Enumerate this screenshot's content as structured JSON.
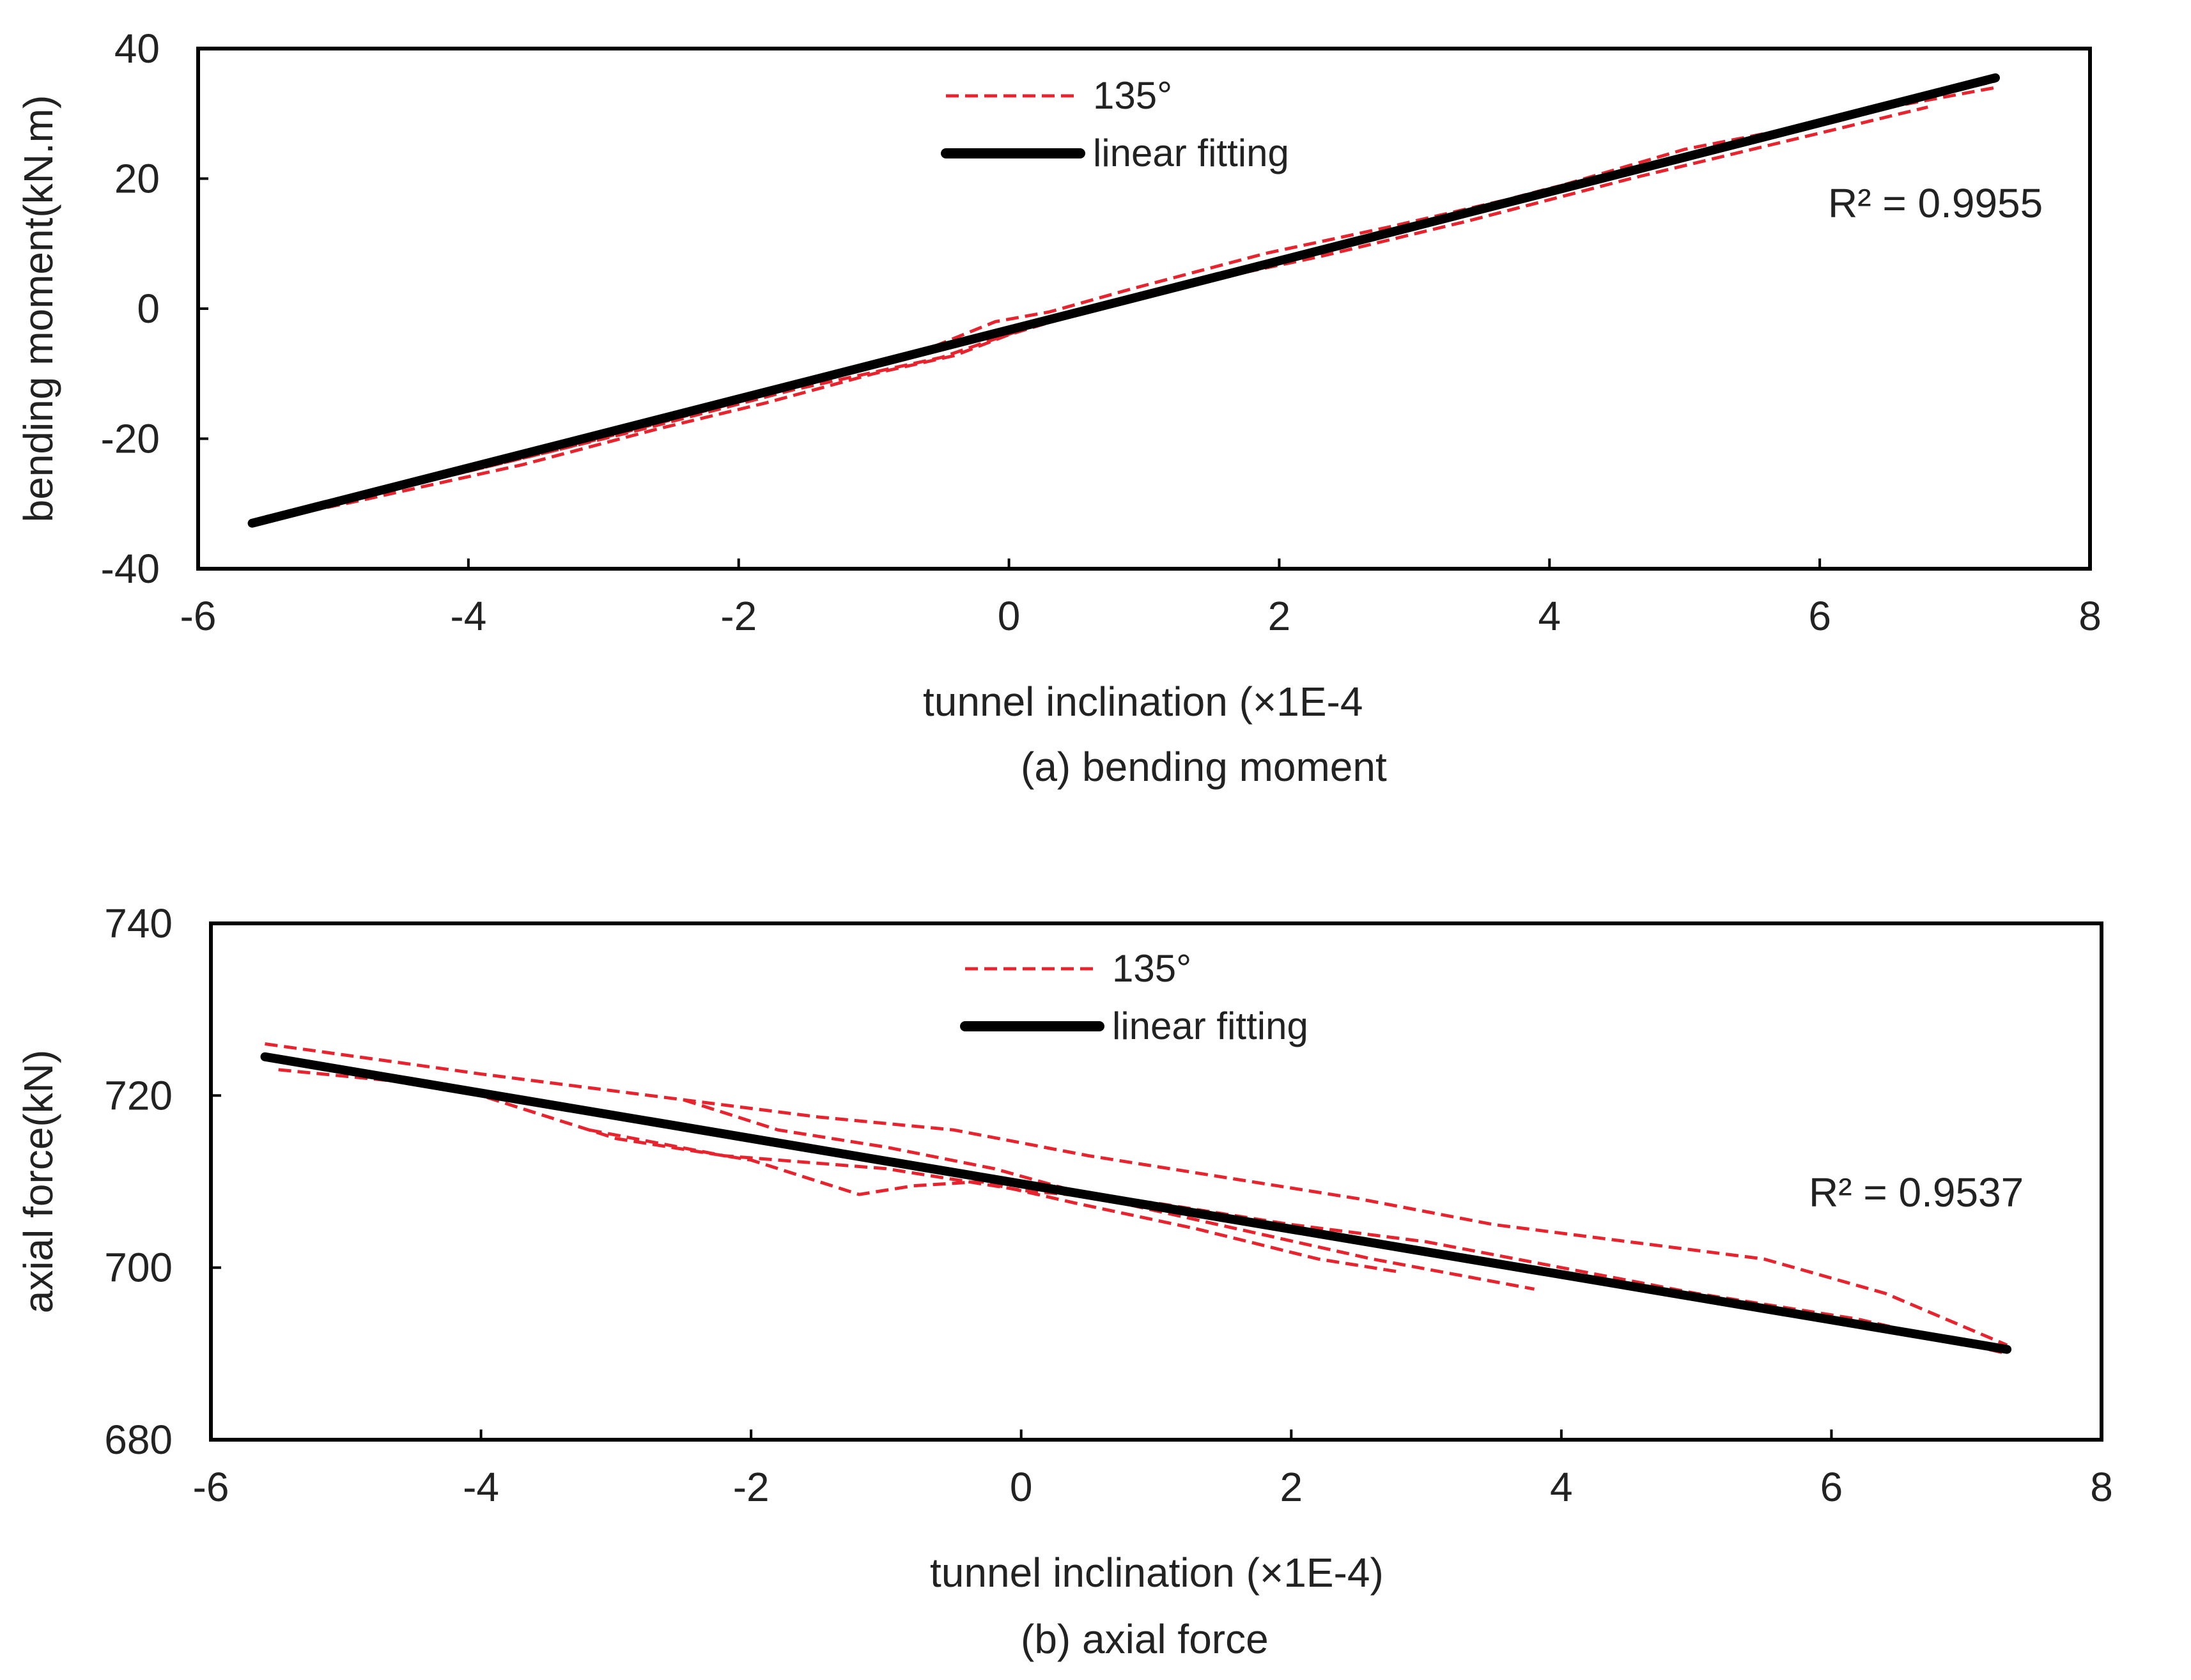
{
  "colors": {
    "measured": "#e8232d",
    "fit": "#000000",
    "axis": "#000000",
    "text": "#222222"
  },
  "chart_data": [
    {
      "type": "line",
      "caption": "(a)  bending moment",
      "xlabel": "tunnel inclination  (×1E-4",
      "ylabel": "bending moment(kN.m)",
      "xlim": [
        -6,
        8
      ],
      "ylim": [
        -40,
        40
      ],
      "xticks": [
        "-6",
        "-4",
        "-2",
        "0",
        "2",
        "4",
        "6",
        "8"
      ],
      "yticks": [
        "-40",
        "-20",
        "0",
        "20",
        "40"
      ],
      "xtick_values": [
        -6,
        -4,
        -2,
        0,
        2,
        4,
        6,
        8
      ],
      "ytick_values": [
        -40,
        -20,
        0,
        20,
        40
      ],
      "legend": [
        "135°",
        "linear fitting"
      ],
      "r2_label": "R² = 0.9955",
      "series": [
        {
          "name": "135° (trace 1)",
          "style": "dashed",
          "x": [
            -5.6,
            -4.8,
            -3.6,
            -2.6,
            -1.8,
            -1.0,
            -0.4,
            0.0,
            0.4,
            1.0,
            2.0,
            3.0,
            4.0,
            5.0,
            6.0,
            7.3
          ],
          "y": [
            -33,
            -29.5,
            -24,
            -18.5,
            -14.5,
            -10,
            -7.2,
            -4.0,
            -1.5,
            1.8,
            7.8,
            13,
            18.5,
            23.5,
            29,
            34
          ]
        },
        {
          "name": "135° (trace 2)",
          "style": "dashed",
          "x": [
            -5.5,
            -4.5,
            -3.3,
            -2.3,
            -1.3,
            -0.6,
            -0.1,
            0.3,
            0.9,
            1.9,
            2.8,
            3.9,
            5.0,
            6.1,
            7.3
          ],
          "y": [
            -32,
            -27.5,
            -21.5,
            -16,
            -10.5,
            -6.2,
            -2.0,
            -0.5,
            3.0,
            8.5,
            12.5,
            17.8,
            24.5,
            29,
            35
          ]
        },
        {
          "name": "135° (trace 3)",
          "style": "dashed",
          "x": [
            -5.4,
            -4.0,
            -2.8,
            -1.6,
            -0.5,
            0.2,
            1.2,
            2.3,
            3.4,
            4.6,
            5.7,
            6.8
          ],
          "y": [
            -31.5,
            -25,
            -19,
            -12.5,
            -7.5,
            -2.5,
            3.2,
            8.0,
            13.5,
            20,
            25.5,
            31
          ]
        },
        {
          "name": "linear fitting",
          "style": "solid",
          "x": [
            -5.6,
            7.3
          ],
          "y": [
            -33,
            35.5
          ]
        }
      ]
    },
    {
      "type": "line",
      "caption": "(b)  axial force",
      "xlabel": "tunnel inclination  (×1E-4)",
      "ylabel": "axial force(kN)",
      "xlim": [
        -6,
        8
      ],
      "ylim": [
        680,
        740
      ],
      "xticks": [
        "-6",
        "-4",
        "-2",
        "0",
        "2",
        "4",
        "6",
        "8"
      ],
      "yticks": [
        "680",
        "700",
        "720",
        "740"
      ],
      "xtick_values": [
        -6,
        -4,
        -2,
        0,
        2,
        4,
        6,
        8
      ],
      "ytick_values": [
        680,
        700,
        720,
        740
      ],
      "legend": [
        "135°",
        "linear fitting"
      ],
      "r2_label": "R² = 0.9537",
      "series": [
        {
          "name": "135° (trace 1)",
          "style": "dashed",
          "x": [
            -5.6,
            -4.0,
            -2.5,
            -1.5,
            -0.5,
            0.5,
            1.5,
            2.5,
            3.5,
            4.5,
            5.5,
            6.4,
            7.3
          ],
          "y": [
            726,
            722.5,
            719.5,
            717.5,
            716,
            713,
            710.5,
            708,
            705,
            703,
            701,
            697,
            691
          ]
        },
        {
          "name": "135° (trace 2)",
          "style": "dashed",
          "x": [
            -5.5,
            -4.2,
            -3.0,
            -2.0,
            -1.2,
            -0.8,
            -0.3,
            0.4,
            1.3,
            2.2,
            2.8
          ],
          "y": [
            723,
            721,
            715,
            712.5,
            708.5,
            709.5,
            710,
            707.5,
            704.5,
            701,
            699.5
          ]
        },
        {
          "name": "135° (trace 3)",
          "style": "dashed",
          "x": [
            -2.5,
            -1.8,
            -1.0,
            -0.2,
            0.6,
            1.6,
            2.6,
            3.8
          ],
          "y": [
            719.5,
            716,
            714,
            711.5,
            708,
            704.5,
            701,
            697.5
          ]
        },
        {
          "name": "135° (trace 4)",
          "style": "dashed",
          "x": [
            -3.2,
            -2.2,
            -1.0,
            0.0,
            1.0,
            2.0,
            3.0,
            4.0,
            5.0,
            6.2,
            7.3
          ],
          "y": [
            716,
            713,
            711.5,
            709,
            707.5,
            705,
            703,
            700,
            697,
            694,
            690
          ]
        },
        {
          "name": "linear fitting",
          "style": "solid",
          "x": [
            -5.6,
            7.3
          ],
          "y": [
            724.5,
            690.5
          ]
        }
      ]
    }
  ]
}
